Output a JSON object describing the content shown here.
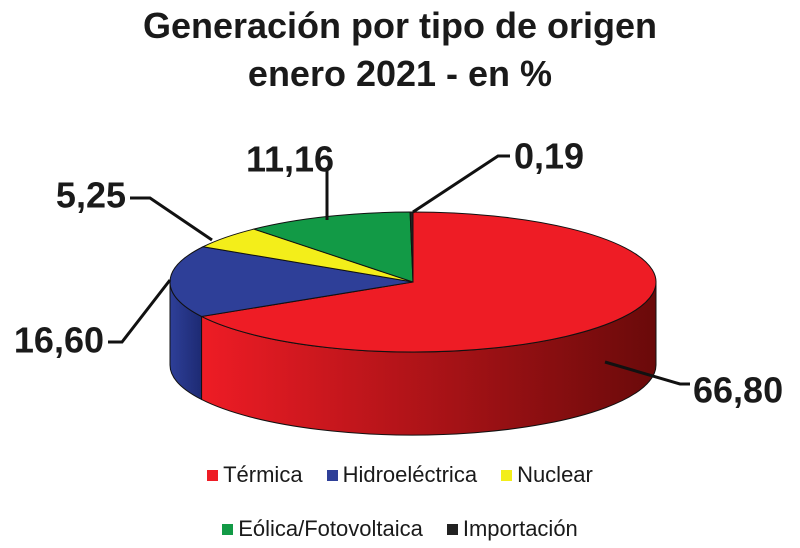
{
  "chart_data": {
    "type": "pie",
    "title_line1": "Generación por tipo de origen",
    "title_line2": "enero 2021 - en %",
    "slices": [
      {
        "name": "Térmica",
        "value": 66.8,
        "label": "66,80",
        "color": "#ee1c25",
        "side": "#6a0a0a"
      },
      {
        "name": "Hidroeléctrica",
        "value": 16.6,
        "label": "16,60",
        "color": "#2e3f98",
        "side": "#1d2a73"
      },
      {
        "name": "Nuclear",
        "value": 5.25,
        "label": "5,25",
        "color": "#f3ee1a",
        "side": "#b8b200"
      },
      {
        "name": "Eólica/Fotovoltaica",
        "value": 11.16,
        "label": "11,16",
        "color": "#129a46",
        "side": "#0b6a2f"
      },
      {
        "name": "Importación",
        "value": 0.19,
        "label": "0,19",
        "color": "#222222",
        "side": "#000000"
      }
    ],
    "legend_placement": "bottom"
  }
}
